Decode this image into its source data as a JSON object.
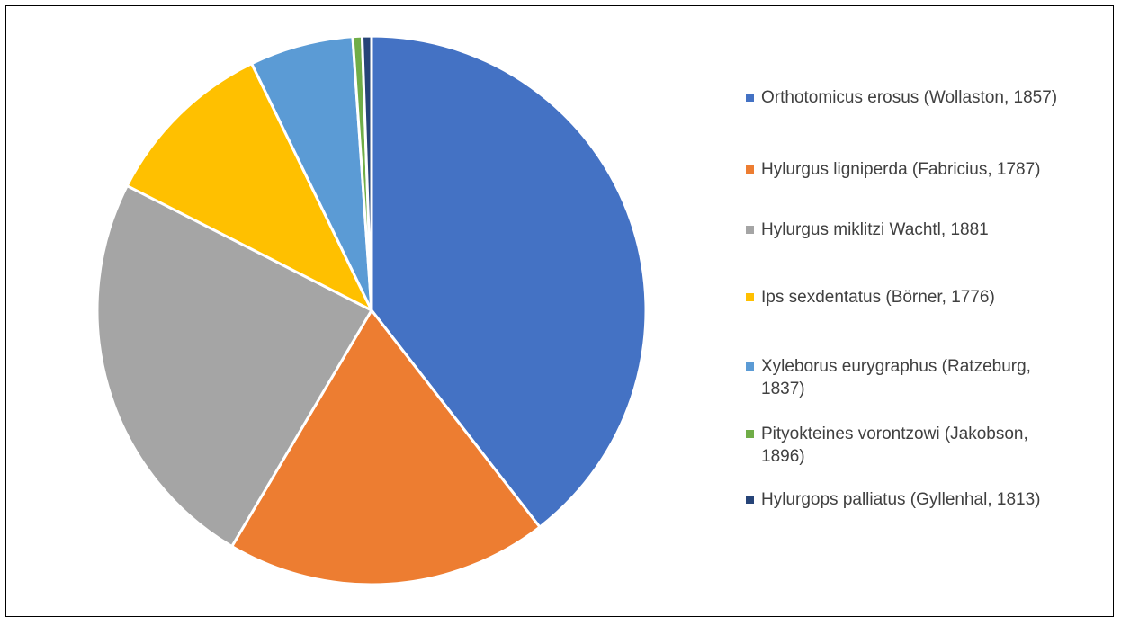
{
  "chart_data": {
    "type": "pie",
    "title": "",
    "slices": [
      {
        "label": "Orthotomicus erosus (Wollaston, 1857)",
        "value": 39.5,
        "color": "#4472C4"
      },
      {
        "label": "Hylurgus ligniperda (Fabricius, 1787)",
        "value": 19.0,
        "color": "#ED7D31"
      },
      {
        "label": "Hylurgus miklitzi Wachtl, 1881",
        "value": 24.0,
        "color": "#A5A5A5"
      },
      {
        "label": "Ips sexdentatus (Börner, 1776)",
        "value": 10.3,
        "color": "#FFC000"
      },
      {
        "label": "Xyleborus eurygraphus (Ratzeburg, 1837)",
        "value": 6.1,
        "color": "#5B9BD5"
      },
      {
        "label": "Pityokteines vorontzowi (Jakobson, 1896)",
        "value": 0.55,
        "color": "#70AD47"
      },
      {
        "label": "Hylurgops palliatus (Gyllenhal, 1813)",
        "value": 0.55,
        "color": "#264478"
      }
    ],
    "start_angle": "12 o'clock",
    "direction": "clockwise",
    "legend_position": "right"
  }
}
